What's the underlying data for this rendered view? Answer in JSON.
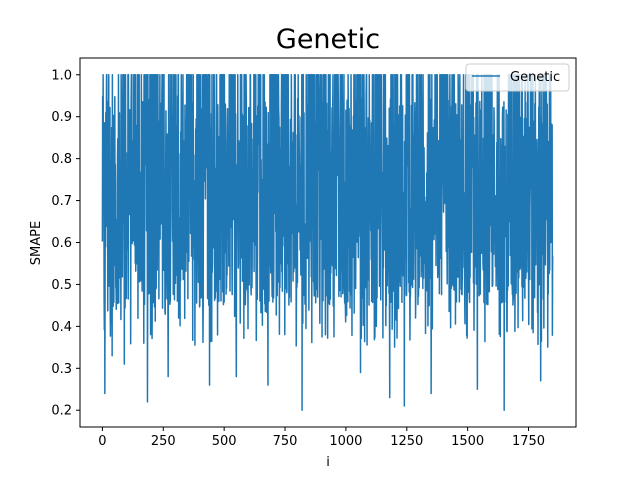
{
  "chart_data": {
    "type": "line",
    "title": "Genetic",
    "xlabel": "i",
    "ylabel": "SMAPE",
    "xlim": [
      -92,
      1945
    ],
    "ylim": [
      0.16,
      1.04
    ],
    "xticks": [
      0,
      250,
      500,
      750,
      1000,
      1250,
      1500,
      1750
    ],
    "yticks": [
      0.2,
      0.3,
      0.4,
      0.5,
      0.6,
      0.7,
      0.8,
      0.9,
      1.0
    ],
    "xtick_labels": [
      "0",
      "250",
      "500",
      "750",
      "1000",
      "1250",
      "1500",
      "1750"
    ],
    "ytick_labels": [
      "0.2",
      "0.3",
      "0.4",
      "0.5",
      "0.6",
      "0.7",
      "0.8",
      "0.9",
      "1.0"
    ],
    "grid": false,
    "legend_position": "top-right",
    "series": [
      {
        "name": "Genetic",
        "color": "#1f77b4",
        "n_points": 1850,
        "min": 0.2,
        "max": 1.0,
        "notable_low_points": [
          {
            "x": 10,
            "y": 0.24
          },
          {
            "x": 40,
            "y": 0.33
          },
          {
            "x": 90,
            "y": 0.31
          },
          {
            "x": 185,
            "y": 0.22
          },
          {
            "x": 270,
            "y": 0.28
          },
          {
            "x": 440,
            "y": 0.26
          },
          {
            "x": 550,
            "y": 0.28
          },
          {
            "x": 680,
            "y": 0.26
          },
          {
            "x": 820,
            "y": 0.2
          },
          {
            "x": 1060,
            "y": 0.29
          },
          {
            "x": 1180,
            "y": 0.23
          },
          {
            "x": 1240,
            "y": 0.21
          },
          {
            "x": 1350,
            "y": 0.24
          },
          {
            "x": 1540,
            "y": 0.25
          },
          {
            "x": 1650,
            "y": 0.2
          },
          {
            "x": 1800,
            "y": 0.27
          }
        ]
      }
    ]
  }
}
